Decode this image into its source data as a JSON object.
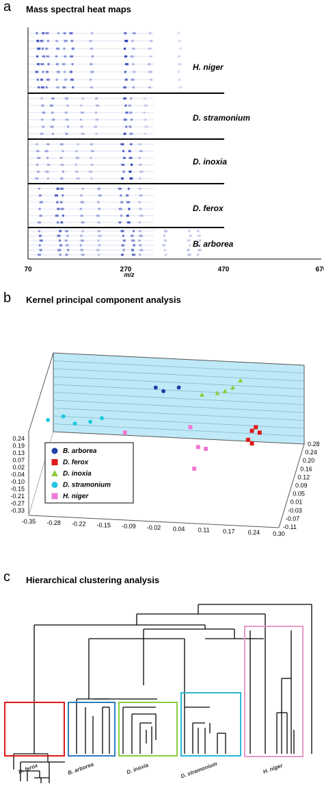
{
  "panels": {
    "a": {
      "letter": "a",
      "title": "Mass spectral heat maps"
    },
    "b": {
      "letter": "b",
      "title": "Kernel principal component analysis"
    },
    "c": {
      "letter": "c",
      "title": "Hierarchical clustering analysis"
    }
  },
  "colors": {
    "B. arborea": "#1f3fa8",
    "D. ferox": "#e01818",
    "D. inoxia": "#8ccd3c",
    "D. stramonium": "#1ec8e0",
    "H. niger": "#f07ad4",
    "heat": "#1a2fb0",
    "plane": "#bfe9f7"
  },
  "chart_data": [
    {
      "type": "heatmap",
      "title": "Mass spectral heat maps",
      "xlabel": "m/z",
      "x_ticks": [
        "70",
        "270",
        "470",
        "670"
      ],
      "xlim": [
        70,
        670
      ],
      "groups": [
        {
          "name": "H. niger",
          "rows": 8,
          "peaks": [
            [
              90,
              0.8
            ],
            [
              100,
              0.7
            ],
            [
              110,
              0.6
            ],
            [
              130,
              0.5
            ],
            [
              145,
              0.5
            ],
            [
              160,
              0.7
            ],
            [
              200,
              0.4
            ],
            [
              270,
              0.9
            ],
            [
              285,
              0.4
            ],
            [
              320,
              0.3
            ],
            [
              380,
              0.2
            ]
          ]
        },
        {
          "name": "D. stramonium",
          "rows": 6,
          "peaks": [
            [
              100,
              0.4
            ],
            [
              120,
              0.5
            ],
            [
              150,
              0.4
            ],
            [
              180,
              0.3
            ],
            [
              210,
              0.3
            ],
            [
              270,
              0.8
            ],
            [
              280,
              0.5
            ],
            [
              310,
              0.2
            ]
          ]
        },
        {
          "name": "D. inoxia",
          "rows": 6,
          "peaks": [
            [
              90,
              0.4
            ],
            [
              110,
              0.4
            ],
            [
              140,
              0.4
            ],
            [
              170,
              0.3
            ],
            [
              200,
              0.3
            ],
            [
              265,
              0.8
            ],
            [
              280,
              0.9
            ],
            [
              300,
              0.3
            ]
          ]
        },
        {
          "name": "D. ferox",
          "rows": 6,
          "peaks": [
            [
              95,
              0.5
            ],
            [
              130,
              0.8
            ],
            [
              140,
              0.7
            ],
            [
              180,
              0.4
            ],
            [
              215,
              0.4
            ],
            [
              260,
              0.6
            ],
            [
              275,
              0.8
            ],
            [
              300,
              0.3
            ]
          ]
        },
        {
          "name": "B. arborea",
          "rows": 6,
          "peaks": [
            [
              95,
              0.6
            ],
            [
              135,
              0.7
            ],
            [
              150,
              0.5
            ],
            [
              180,
              0.4
            ],
            [
              215,
              0.3
            ],
            [
              265,
              0.7
            ],
            [
              285,
              0.7
            ],
            [
              300,
              0.4
            ],
            [
              350,
              0.3
            ],
            [
              400,
              0.3
            ],
            [
              420,
              0.3
            ]
          ]
        }
      ]
    },
    {
      "type": "scatter",
      "title": "Kernel principal component analysis",
      "x_ticks": [
        "-0.35",
        "-0.28",
        "-0.22",
        "-0.15",
        "-0.09",
        "-0.02",
        "0.04",
        "0.11",
        "0.17",
        "0.24",
        "0.30"
      ],
      "y_ticks": [
        "0.24",
        "0.19",
        "0.13",
        "0.07",
        "0.02",
        "-0.04",
        "-0.10",
        "-0.15",
        "-0.21",
        "-0.27",
        "-0.33"
      ],
      "z_ticks": [
        "0.28",
        "0.24",
        "0.20",
        "0.16",
        "0.12",
        "0.09",
        "0.05",
        "0.01",
        "-0.03",
        "-0.07",
        "-0.11"
      ],
      "series": [
        {
          "name": "B. arborea",
          "marker": "circle",
          "points": [
            [
              -0.02,
              0.2
            ],
            [
              0.0,
              0.18
            ],
            [
              0.04,
              0.2
            ]
          ]
        },
        {
          "name": "D. ferox",
          "marker": "square",
          "points": [
            [
              0.24,
              -0.02
            ],
            [
              0.23,
              -0.04
            ],
            [
              0.25,
              -0.05
            ],
            [
              0.22,
              -0.09
            ],
            [
              0.23,
              -0.11
            ]
          ]
        },
        {
          "name": "D. inoxia",
          "marker": "triangle",
          "points": [
            [
              0.1,
              0.16
            ],
            [
              0.14,
              0.17
            ],
            [
              0.16,
              0.18
            ],
            [
              0.18,
              0.2
            ],
            [
              0.2,
              0.24
            ]
          ]
        },
        {
          "name": "D. stramonium",
          "marker": "circle",
          "points": [
            [
              -0.3,
              0.02
            ],
            [
              -0.26,
              0.04
            ],
            [
              -0.23,
              0.0
            ],
            [
              -0.19,
              0.01
            ],
            [
              -0.16,
              0.03
            ]
          ]
        },
        {
          "name": "H. niger",
          "marker": "square",
          "points": [
            [
              -0.1,
              -0.05
            ],
            [
              0.07,
              -0.02
            ],
            [
              0.09,
              -0.13
            ],
            [
              0.11,
              -0.14
            ],
            [
              0.08,
              -0.25
            ]
          ]
        }
      ],
      "legend": [
        "B. arborea",
        "D. ferox",
        "D. inoxia",
        "D. stramonium",
        "H. niger"
      ],
      "legend_position": "center-left"
    },
    {
      "type": "dendrogram",
      "title": "Hierarchical clustering analysis",
      "clusters": [
        "D. ferox",
        "B. arborea",
        "D. inoxia",
        "D. stramonium",
        "H. niger"
      ]
    }
  ]
}
